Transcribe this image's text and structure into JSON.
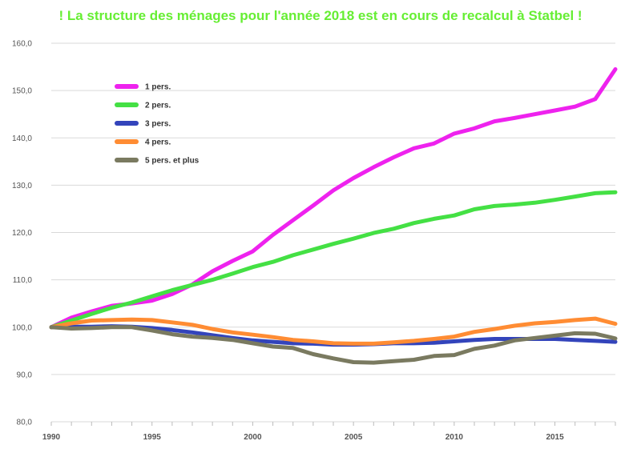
{
  "chart_data": {
    "type": "line",
    "title": "! La structure des ménages pour l'année 2018 est en cours de recalcul à Statbel !",
    "xlabel": "",
    "ylabel": "",
    "ylim": [
      80,
      160
    ],
    "xlim": [
      1990,
      2018
    ],
    "y_ticks": [
      "80,0",
      "90,0",
      "100,0",
      "110,0",
      "120,0",
      "130,0",
      "140,0",
      "150,0",
      "160,0"
    ],
    "x_ticks": [
      "1990",
      "1995",
      "2000",
      "2005",
      "2010",
      "2015"
    ],
    "grid": "horizontal",
    "legend_position": "top-left",
    "x": [
      1990,
      1991,
      1992,
      1993,
      1994,
      1995,
      1996,
      1997,
      1998,
      1999,
      2000,
      2001,
      2002,
      2003,
      2004,
      2005,
      2006,
      2007,
      2008,
      2009,
      2010,
      2011,
      2012,
      2013,
      2014,
      2015,
      2016,
      2017,
      2018
    ],
    "series": [
      {
        "name": "1 pers.",
        "color": "#ee22ee",
        "values": [
          100,
          102,
          103.3,
          104.5,
          105,
          105.6,
          107,
          109,
          111.8,
          114,
          116,
          119.5,
          122.6,
          125.7,
          128.9,
          131.5,
          133.8,
          135.9,
          137.8,
          138.8,
          140.9,
          142,
          143.5,
          144.2,
          145,
          145.8,
          146.6,
          148.2,
          154.5
        ]
      },
      {
        "name": "2 pers.",
        "color": "#44e044",
        "values": [
          100,
          101.4,
          102.8,
          104.1,
          105.2,
          106.5,
          107.8,
          108.9,
          110,
          111.3,
          112.7,
          113.8,
          115.2,
          116.4,
          117.6,
          118.7,
          119.9,
          120.8,
          122,
          122.9,
          123.6,
          124.9,
          125.6,
          125.9,
          126.3,
          126.9,
          127.6,
          128.3,
          128.5
        ]
      },
      {
        "name": "3 pers.",
        "color": "#3344bb",
        "values": [
          100,
          100.1,
          100.1,
          100.2,
          100.1,
          99.8,
          99.4,
          98.9,
          98.3,
          97.7,
          97.2,
          96.9,
          96.6,
          96.5,
          96.3,
          96.3,
          96.4,
          96.6,
          96.6,
          96.7,
          97,
          97.3,
          97.5,
          97.5,
          97.5,
          97.5,
          97.3,
          97.1,
          96.9
        ]
      },
      {
        "name": "4 pers.",
        "color": "#ff8c33",
        "values": [
          100,
          100.8,
          101.4,
          101.5,
          101.6,
          101.5,
          101,
          100.5,
          99.6,
          98.9,
          98.4,
          97.9,
          97.3,
          97,
          96.6,
          96.5,
          96.5,
          96.8,
          97.1,
          97.5,
          98,
          99,
          99.6,
          100.3,
          100.8,
          101.1,
          101.5,
          101.8,
          100.7
        ]
      },
      {
        "name": "5 pers. et plus",
        "color": "#7a7a60",
        "values": [
          100,
          99.7,
          99.8,
          100,
          100,
          99.3,
          98.5,
          98,
          97.7,
          97.3,
          96.6,
          95.9,
          95.6,
          94.3,
          93.4,
          92.6,
          92.5,
          92.8,
          93.1,
          93.9,
          94.1,
          95.4,
          96.1,
          97.2,
          97.7,
          98.2,
          98.7,
          98.6,
          97.6
        ]
      }
    ]
  }
}
